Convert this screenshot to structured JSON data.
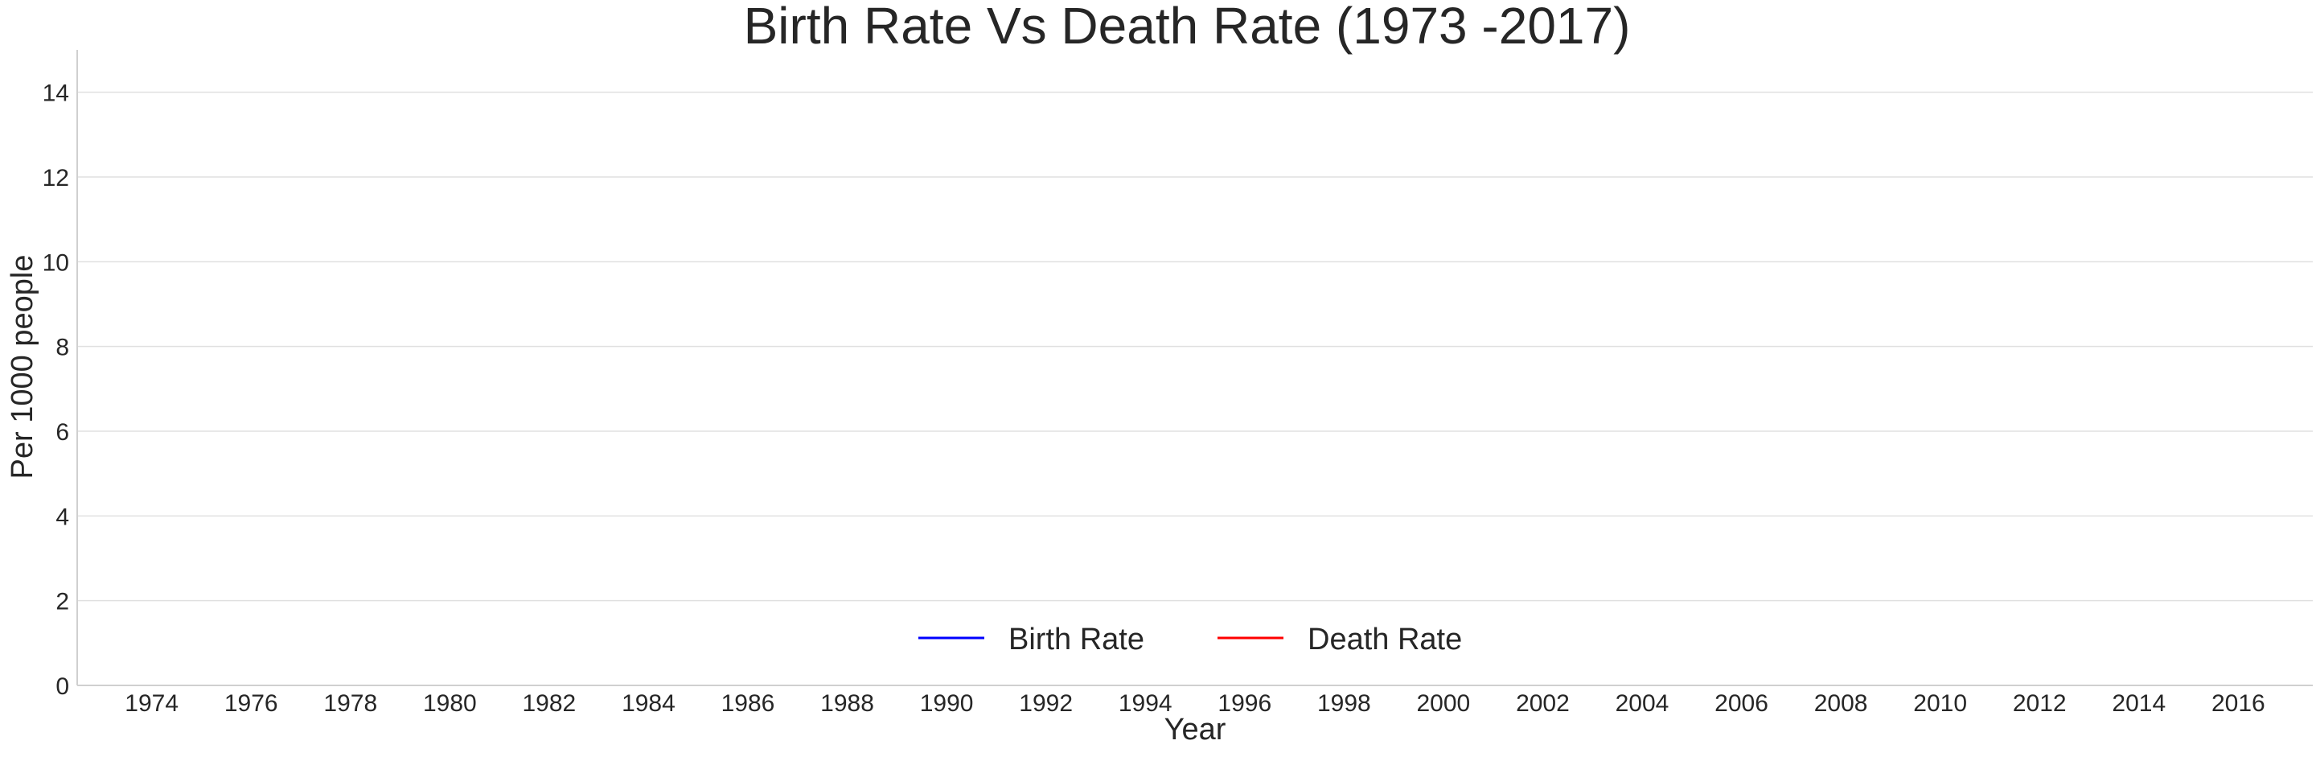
{
  "chart_data": {
    "type": "line",
    "title": "Birth Rate Vs Death Rate (1973 -2017)",
    "xlabel": "Year",
    "ylabel": "Per 1000 people",
    "xlim": [
      1972.5,
      2017.5
    ],
    "ylim": [
      0,
      15
    ],
    "x_ticks": [
      1974,
      1976,
      1978,
      1980,
      1982,
      1984,
      1986,
      1988,
      1990,
      1992,
      1994,
      1996,
      1998,
      2000,
      2002,
      2004,
      2006,
      2008,
      2010,
      2012,
      2014,
      2016
    ],
    "y_ticks": [
      0,
      2,
      4,
      6,
      8,
      10,
      12,
      14
    ],
    "grid": "horizontal",
    "legend_placement": "lower-center",
    "series": [
      {
        "name": "Birth Rate",
        "color": "#0000ff",
        "x": [],
        "values": []
      },
      {
        "name": "Death Rate",
        "color": "#ff0000",
        "x": [],
        "values": []
      }
    ]
  },
  "colors": {
    "grid": "#e0e0e0",
    "axis": "#d0d0d0",
    "text": "#262626"
  }
}
